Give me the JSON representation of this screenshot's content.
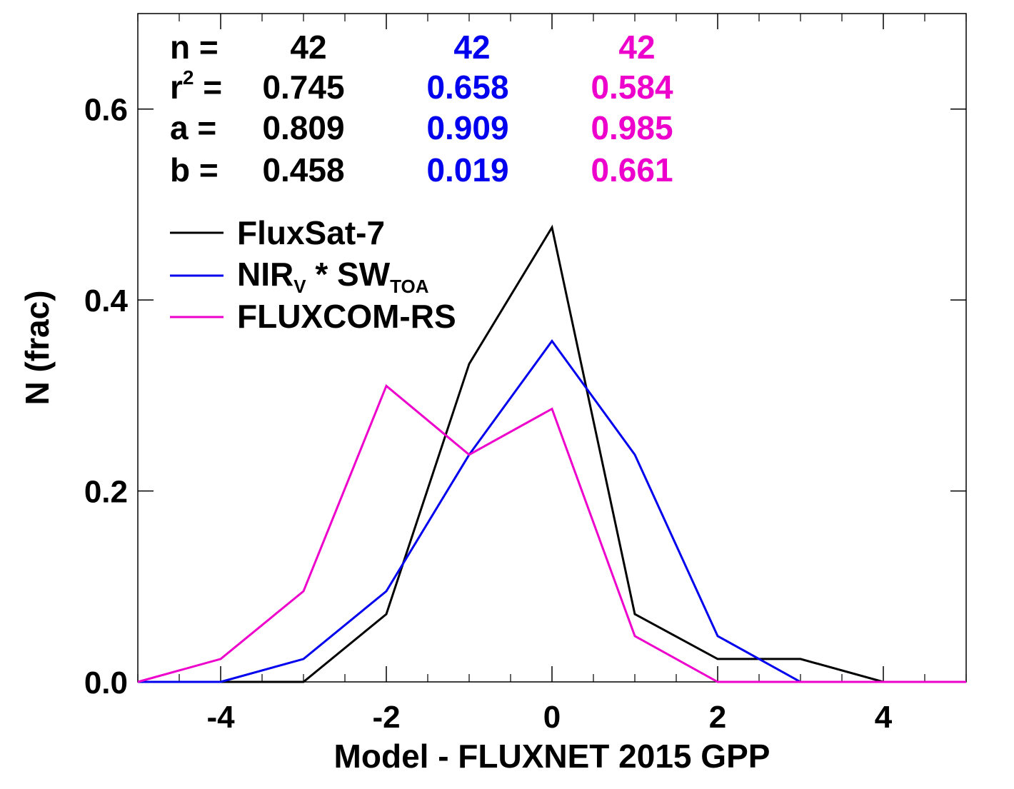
{
  "chart_data": {
    "type": "line",
    "xlabel": "Model - FLUXNET 2015 GPP",
    "ylabel": "N (frac)",
    "xlim": [
      -5,
      5
    ],
    "ylim": [
      0,
      0.7
    ],
    "x_ticks": [
      -4,
      -2,
      0,
      2,
      4
    ],
    "x_tick_labels": [
      "-4",
      "-2",
      "0",
      "2",
      "4"
    ],
    "y_ticks": [
      0.0,
      0.2,
      0.4,
      0.6
    ],
    "y_tick_labels": [
      "0.0",
      "0.2",
      "0.4",
      "0.6"
    ],
    "stats": {
      "labels": {
        "n": "n =",
        "r2_base": "r",
        "r2_sup": "2",
        "r2_eq": " =",
        "a": "a =",
        "b": "b ="
      },
      "columns": [
        {
          "color": "#000000",
          "n": "42",
          "r2": "0.745",
          "a": "0.809",
          "b": "0.458"
        },
        {
          "color": "#0000ee",
          "n": "42",
          "r2": "0.658",
          "a": "0.909",
          "b": "0.019"
        },
        {
          "color": "#ee00cc",
          "n": "42",
          "r2": "0.584",
          "a": "0.985",
          "b": "0.661"
        }
      ]
    },
    "series": [
      {
        "name": "FluxSat-7",
        "legend_base": "FluxSat-7",
        "legend_sub1": "",
        "legend_mid": "",
        "legend_sub2": "",
        "color": "#000000",
        "x": [
          -5,
          -4,
          -3,
          -2,
          -1,
          0,
          1,
          2,
          3,
          4,
          5
        ],
        "values": [
          0.0,
          0.0,
          0.0,
          0.071,
          0.333,
          0.476,
          0.071,
          0.024,
          0.024,
          0.0,
          0.0
        ]
      },
      {
        "name": "NIRV * SWTOA",
        "legend_base": "NIR",
        "legend_sub1": "V",
        "legend_mid": " * SW",
        "legend_sub2": "TOA",
        "color": "#0000ee",
        "x": [
          -5,
          -4,
          -3,
          -2,
          -1,
          0,
          1,
          2,
          3,
          4,
          5
        ],
        "values": [
          0.0,
          0.0,
          0.024,
          0.095,
          0.238,
          0.357,
          0.238,
          0.048,
          0.0,
          0.0,
          0.0
        ]
      },
      {
        "name": "FLUXCOM-RS",
        "legend_base": "FLUXCOM-RS",
        "legend_sub1": "",
        "legend_mid": "",
        "legend_sub2": "",
        "color": "#ee00cc",
        "x": [
          -5,
          -4,
          -3,
          -2,
          -1,
          0,
          1,
          2,
          3,
          4,
          5
        ],
        "values": [
          0.0,
          0.024,
          0.095,
          0.31,
          0.238,
          0.286,
          0.048,
          0.0,
          0.0,
          0.0,
          0.0
        ]
      }
    ]
  }
}
